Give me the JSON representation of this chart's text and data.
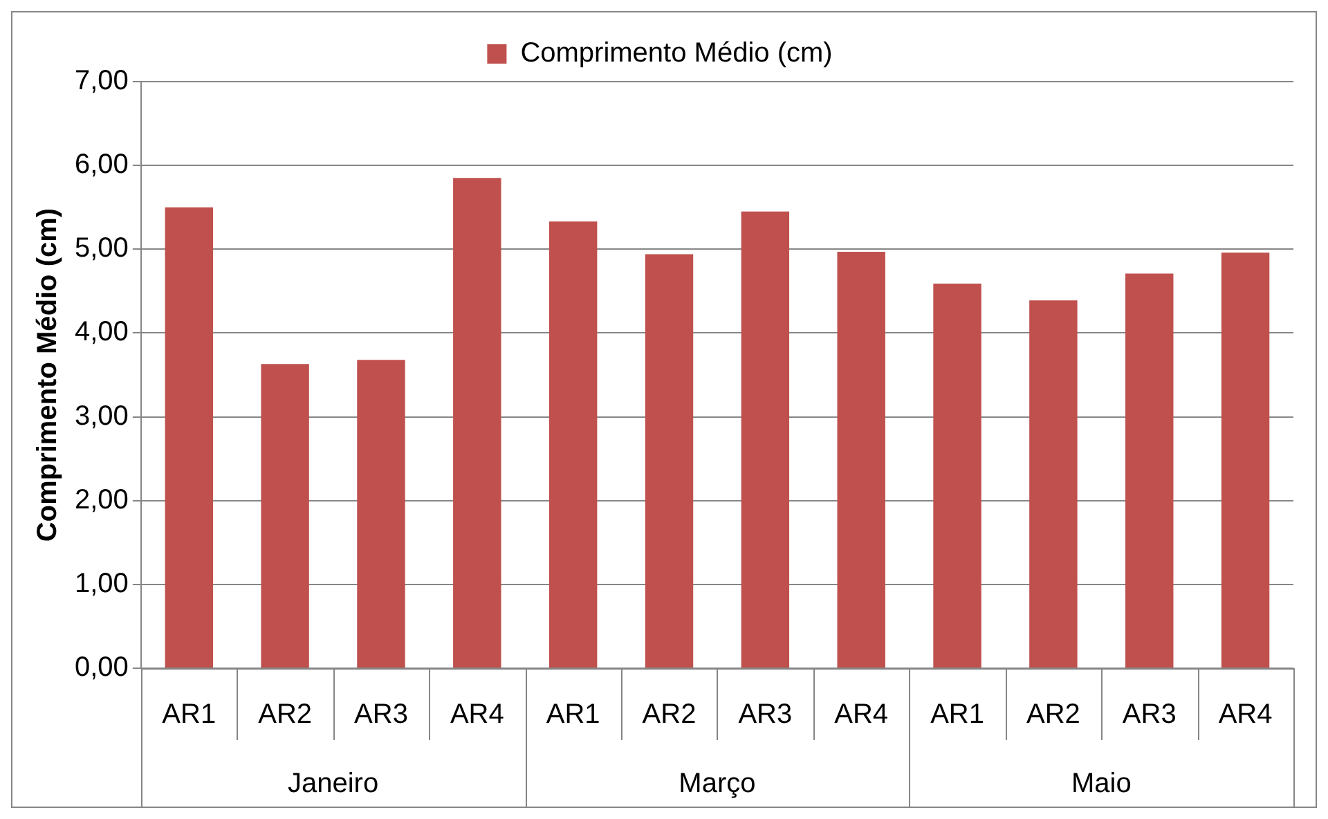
{
  "chart_data": {
    "type": "bar",
    "ylabel": "Comprimento Médio (cm)",
    "categories": [
      "AR1",
      "AR2",
      "AR3",
      "AR4",
      "AR1",
      "AR2",
      "AR3",
      "AR4",
      "AR1",
      "AR2",
      "AR3",
      "AR4"
    ],
    "series": [
      {
        "name": "Comprimento Médio (cm)",
        "color": "#c0504d",
        "values": [
          5.5,
          3.63,
          3.68,
          5.85,
          5.33,
          4.94,
          5.45,
          4.97,
          4.59,
          4.39,
          4.71,
          4.96
        ]
      }
    ],
    "annotations": [
      "Janeiro",
      "Março",
      "Maio"
    ],
    "ylim": [
      0,
      7
    ],
    "yticks": [
      {
        "value": 0,
        "label": "0,00"
      },
      {
        "value": 1,
        "label": "1,00"
      },
      {
        "value": 2,
        "label": "2,00"
      },
      {
        "value": 3,
        "label": "3,00"
      },
      {
        "value": 4,
        "label": "4,00"
      },
      {
        "value": 5,
        "label": "5,00"
      },
      {
        "value": 6,
        "label": "6,00"
      },
      {
        "value": 7,
        "label": "7,00"
      }
    ],
    "grid": "y",
    "legend": "top"
  }
}
